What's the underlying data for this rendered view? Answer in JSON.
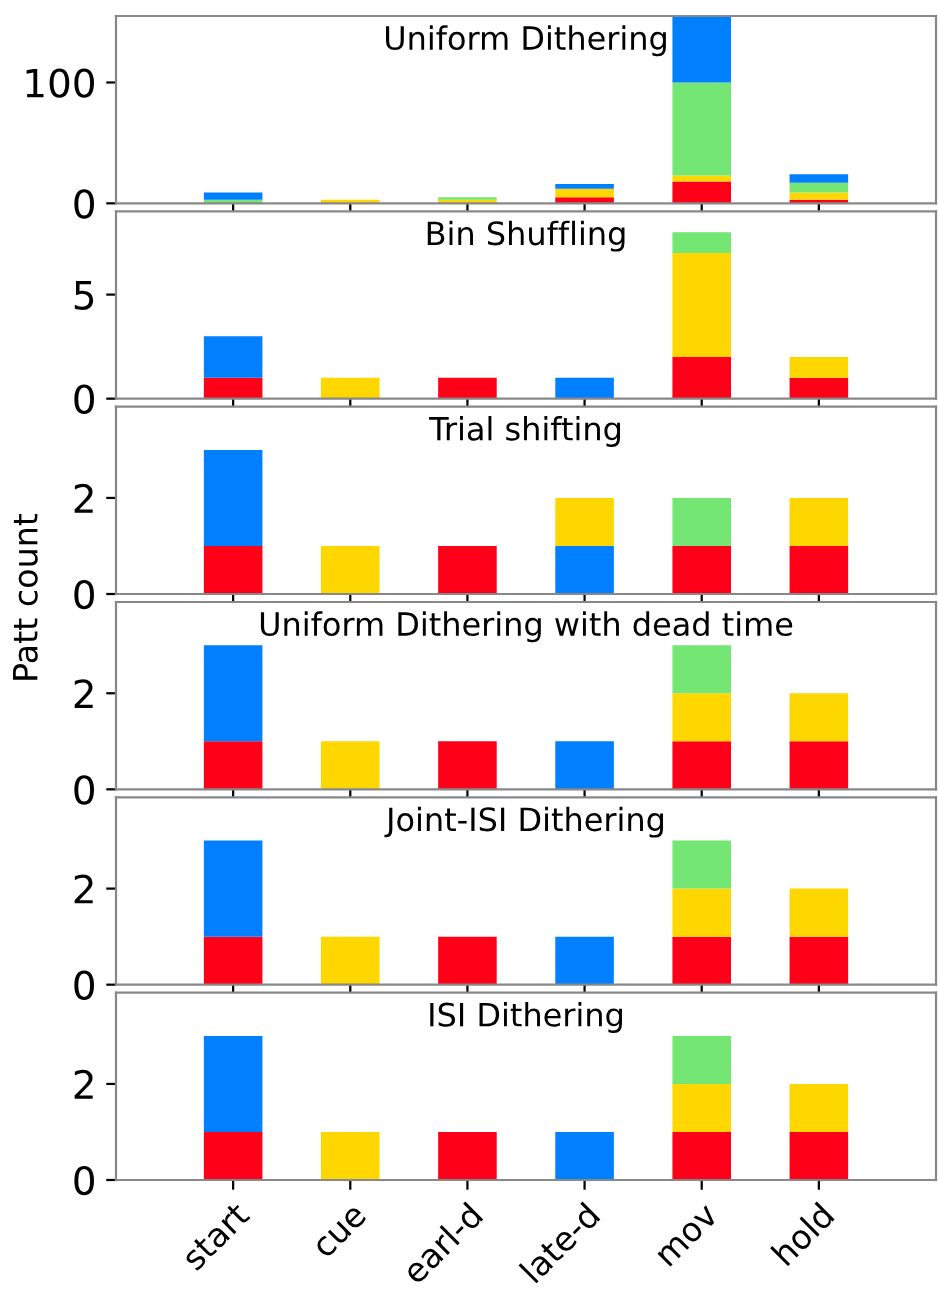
{
  "chart_data": [
    {
      "type": "bar",
      "title": "Uniform Dithering",
      "stacked": true,
      "ylim": [
        0,
        155
      ],
      "yticks": [
        0,
        100
      ],
      "tick_labels": "y",
      "series": [
        {
          "color": "#ff0019",
          "values": [
            0,
            0,
            0,
            5,
            18,
            3
          ]
        },
        {
          "color": "#ffd700",
          "values": [
            0,
            3,
            3,
            7,
            5,
            6
          ]
        },
        {
          "color": "#73e673",
          "values": [
            3,
            0,
            2,
            0,
            77,
            8
          ]
        },
        {
          "color": "#0080ff",
          "values": [
            6,
            0,
            0,
            4,
            55,
            7
          ]
        }
      ]
    },
    {
      "type": "bar",
      "title": "Bin Shuffling",
      "stacked": true,
      "ylim": [
        0,
        9
      ],
      "yticks": [
        0,
        5
      ],
      "tick_labels": "y",
      "series": [
        {
          "color": "#ff0019",
          "values": [
            1,
            0,
            1,
            0,
            2,
            1
          ]
        },
        {
          "color": "#ffd700",
          "values": [
            0,
            1,
            0,
            0,
            5,
            1
          ]
        },
        {
          "color": "#73e673",
          "values": [
            0,
            0,
            0,
            0,
            1,
            0
          ]
        },
        {
          "color": "#0080ff",
          "values": [
            2,
            0,
            0,
            1,
            0,
            0
          ]
        }
      ]
    },
    {
      "type": "bar",
      "title": "Trial shifting",
      "stacked": true,
      "ylim": [
        0,
        3.9
      ],
      "yticks": [
        0,
        2
      ],
      "tick_labels": "y",
      "series": [
        {
          "color": "#ff0019",
          "values": [
            1,
            0,
            1,
            0,
            1,
            1
          ]
        },
        {
          "color": "#0080ff",
          "values": [
            2,
            0,
            0,
            1,
            0,
            0
          ]
        },
        {
          "color": "#ffd700",
          "values": [
            0,
            1,
            0,
            1,
            0,
            1
          ]
        },
        {
          "color": "#73e673",
          "values": [
            0,
            0,
            0,
            0,
            1,
            0
          ]
        }
      ]
    },
    {
      "type": "bar",
      "title": "Uniform Dithering with dead time",
      "ylabel": "Patt count",
      "stacked": true,
      "ylim": [
        0,
        3.9
      ],
      "yticks": [
        0,
        2
      ],
      "tick_labels": "y",
      "series": [
        {
          "color": "#ff0019",
          "values": [
            1,
            0,
            1,
            0,
            1,
            1
          ]
        },
        {
          "color": "#ffd700",
          "values": [
            0,
            1,
            0,
            0,
            1,
            1
          ]
        },
        {
          "color": "#73e673",
          "values": [
            0,
            0,
            0,
            0,
            1,
            0
          ]
        },
        {
          "color": "#0080ff",
          "values": [
            2,
            0,
            0,
            1,
            0,
            0
          ]
        }
      ]
    },
    {
      "type": "bar",
      "title": "Joint-ISI Dithering",
      "stacked": true,
      "ylim": [
        0,
        3.9
      ],
      "yticks": [
        0,
        2
      ],
      "tick_labels": "y",
      "series": [
        {
          "color": "#ff0019",
          "values": [
            1,
            0,
            1,
            0,
            1,
            1
          ]
        },
        {
          "color": "#ffd700",
          "values": [
            0,
            1,
            0,
            0,
            1,
            1
          ]
        },
        {
          "color": "#73e673",
          "values": [
            0,
            0,
            0,
            0,
            1,
            0
          ]
        },
        {
          "color": "#0080ff",
          "values": [
            2,
            0,
            0,
            1,
            0,
            0
          ]
        }
      ]
    },
    {
      "type": "bar",
      "title": "ISI Dithering",
      "stacked": true,
      "categories": [
        "start",
        "cue",
        "earl-d",
        "late-d",
        "mov",
        "hold"
      ],
      "ylim": [
        0,
        3.9
      ],
      "yticks": [
        0,
        2
      ],
      "series": [
        {
          "color": "#ff0019",
          "values": [
            1,
            0,
            1,
            0,
            1,
            1
          ]
        },
        {
          "color": "#ffd700",
          "values": [
            0,
            1,
            0,
            0,
            1,
            1
          ]
        },
        {
          "color": "#73e673",
          "values": [
            0,
            0,
            0,
            0,
            1,
            0
          ]
        },
        {
          "color": "#0080ff",
          "values": [
            2,
            0,
            0,
            1,
            0,
            0
          ]
        }
      ]
    }
  ]
}
